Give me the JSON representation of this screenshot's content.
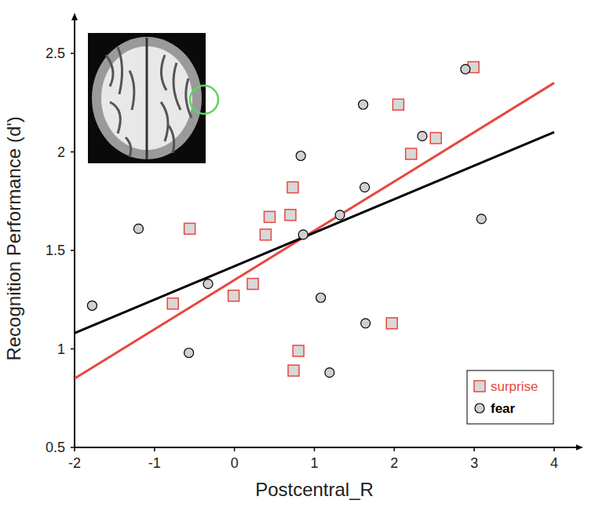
{
  "chart_data": {
    "type": "scatter",
    "x_label": "Postcentral_R",
    "y_label": "Recognition Performance (d')",
    "xlim": [
      -2,
      4.35
    ],
    "ylim": [
      0.5,
      2.7
    ],
    "xticks": [
      -2,
      -1,
      0,
      1,
      2,
      3,
      4
    ],
    "yticks": [
      0.5,
      1,
      1.5,
      2,
      2.5
    ],
    "grid": false,
    "legend": "lower right",
    "series": [
      {
        "name": "surprise",
        "color": "#e8473f",
        "marker": "square",
        "x": [
          2.99,
          2.05,
          2.21,
          2.52,
          0.73,
          0.7,
          0.44,
          0.39,
          -0.56,
          0.23,
          -0.01,
          -0.77,
          0.8,
          0.74,
          1.97
        ],
        "values": [
          2.43,
          2.24,
          1.99,
          2.07,
          1.82,
          1.68,
          1.67,
          1.58,
          1.61,
          1.33,
          1.27,
          1.23,
          0.99,
          0.89,
          1.13
        ],
        "fit": {
          "x": [
            -2,
            4
          ],
          "values": [
            0.85,
            2.35
          ]
        }
      },
      {
        "name": "fear",
        "color": "#000000",
        "marker": "circle",
        "x": [
          2.89,
          1.61,
          2.35,
          0.83,
          1.63,
          1.32,
          0.86,
          3.09,
          -1.2,
          -0.33,
          -1.78,
          -0.57,
          1.08,
          1.64,
          1.19
        ],
        "values": [
          2.42,
          2.24,
          2.08,
          1.98,
          1.82,
          1.68,
          1.58,
          1.66,
          1.61,
          1.33,
          1.22,
          0.98,
          1.26,
          1.13,
          0.88
        ],
        "fit": {
          "x": [
            -2,
            4
          ],
          "values": [
            1.08,
            2.1
          ]
        }
      }
    ]
  }
}
